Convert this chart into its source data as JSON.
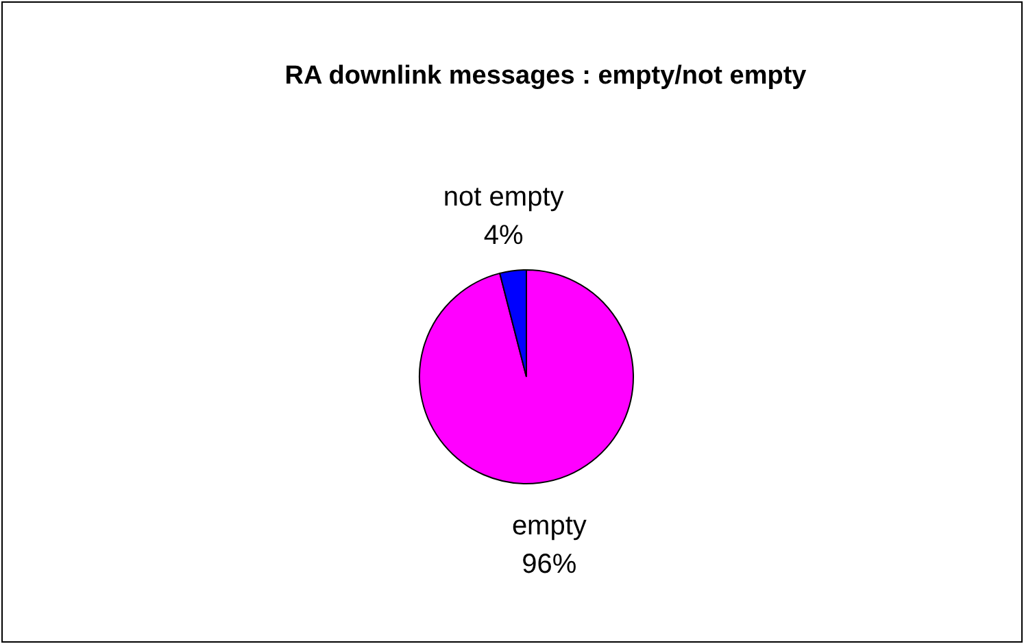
{
  "chart_data": {
    "type": "pie",
    "title": "RA downlink messages : empty/not empty",
    "categories": [
      "empty",
      "not empty"
    ],
    "values": [
      96,
      4
    ],
    "colors": [
      "#ff00ff",
      "#0000ff"
    ],
    "value_labels": [
      "96%",
      "4%"
    ],
    "legend": false
  }
}
